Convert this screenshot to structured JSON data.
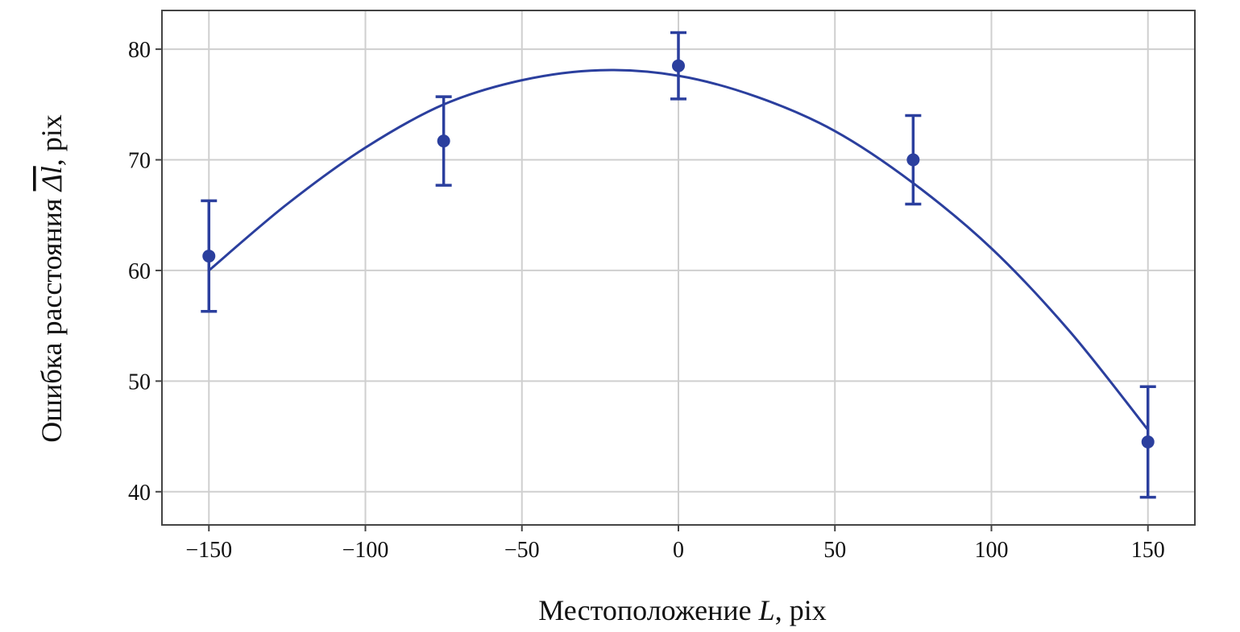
{
  "chart_data": {
    "type": "scatter",
    "xlabel": {
      "prefix": "Местоположение ",
      "var": "L",
      "suffix": ", pix"
    },
    "ylabel": {
      "prefix": "Ошибка расстояния ",
      "var": "Δl",
      "suffix": ", pix"
    },
    "xlim": [
      -165,
      165
    ],
    "ylim": [
      37,
      83.5
    ],
    "x_ticks": [
      -150,
      -100,
      -50,
      0,
      50,
      100,
      150
    ],
    "x_tick_labels": [
      "−150",
      "−100",
      "−50",
      "0",
      "50",
      "100",
      "150"
    ],
    "y_ticks": [
      40,
      50,
      60,
      70,
      80
    ],
    "y_tick_labels": [
      "40",
      "50",
      "60",
      "70",
      "80"
    ],
    "grid": true,
    "color": "#2b3f9e",
    "series": [
      {
        "kind": "points_with_error",
        "points": [
          {
            "x": -150,
            "y": 61.3,
            "low": 56.3,
            "high": 66.3
          },
          {
            "x": -75,
            "y": 71.7,
            "low": 67.7,
            "high": 75.7
          },
          {
            "x": 0,
            "y": 78.5,
            "low": 75.5,
            "high": 81.5
          },
          {
            "x": 75,
            "y": 70.0,
            "low": 66.0,
            "high": 74.0
          },
          {
            "x": 150,
            "y": 44.5,
            "low": 39.5,
            "high": 49.5
          }
        ]
      },
      {
        "kind": "fit_curve",
        "x": [
          -150,
          -125,
          -100,
          -75,
          -50,
          -25,
          0,
          25,
          50,
          75,
          100,
          125,
          150
        ],
        "y": [
          60.0,
          66.0,
          71.1,
          75.0,
          77.2,
          78.1,
          77.6,
          75.7,
          72.6,
          67.9,
          62.0,
          54.5,
          45.6
        ]
      }
    ]
  }
}
